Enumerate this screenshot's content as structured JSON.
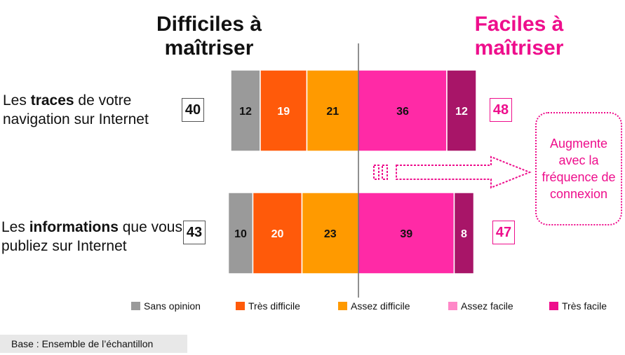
{
  "headers": {
    "left": "Difficiles à maîtriser",
    "right": "Faciles à maîtriser"
  },
  "rows": [
    {
      "label_pre": "Les ",
      "label_bold": "traces",
      "label_post": " de votre navigation sur Internet",
      "sum_difficult": "40",
      "sum_easy": "48"
    },
    {
      "label_pre": "Les ",
      "label_bold": "informations",
      "label_post": " que vous publiez sur Internet",
      "sum_difficult": "43",
      "sum_easy": "47"
    }
  ],
  "callout": "Augmente avec la fréquence de connexion",
  "base_note": "Base : Ensemble de l’échantillon",
  "colors": {
    "sans_opinion": "#9a9a9a",
    "tres_difficile": "#ff5a0a",
    "assez_difficile": "#ff9a00",
    "assez_facile": "#ff2aa6",
    "tres_facile": "#a81568",
    "accent": "#ee0e8c"
  },
  "legend": [
    {
      "label": "Sans opinion",
      "color": "#9a9a9a"
    },
    {
      "label": "Très difficile",
      "color": "#ff5a0a"
    },
    {
      "label": "Assez difficile",
      "color": "#ff9a00"
    },
    {
      "label": "Assez facile",
      "color": "#ff88c8"
    },
    {
      "label": "Très facile",
      "color": "#ee0e8c"
    }
  ],
  "chart_data": {
    "type": "bar",
    "orientation": "horizontal",
    "stacking": "diverging",
    "categories": [
      "Les traces de votre navigation sur Internet",
      "Les informations que vous publiez sur Internet"
    ],
    "series": [
      {
        "name": "Sans opinion",
        "values": [
          12,
          10
        ]
      },
      {
        "name": "Très difficile",
        "values": [
          19,
          20
        ]
      },
      {
        "name": "Assez difficile",
        "values": [
          21,
          23
        ]
      },
      {
        "name": "Assez facile",
        "values": [
          36,
          39
        ]
      },
      {
        "name": "Très facile",
        "values": [
          12,
          8
        ]
      }
    ],
    "totals_difficult": [
      40,
      43
    ],
    "totals_easy": [
      48,
      47
    ]
  }
}
